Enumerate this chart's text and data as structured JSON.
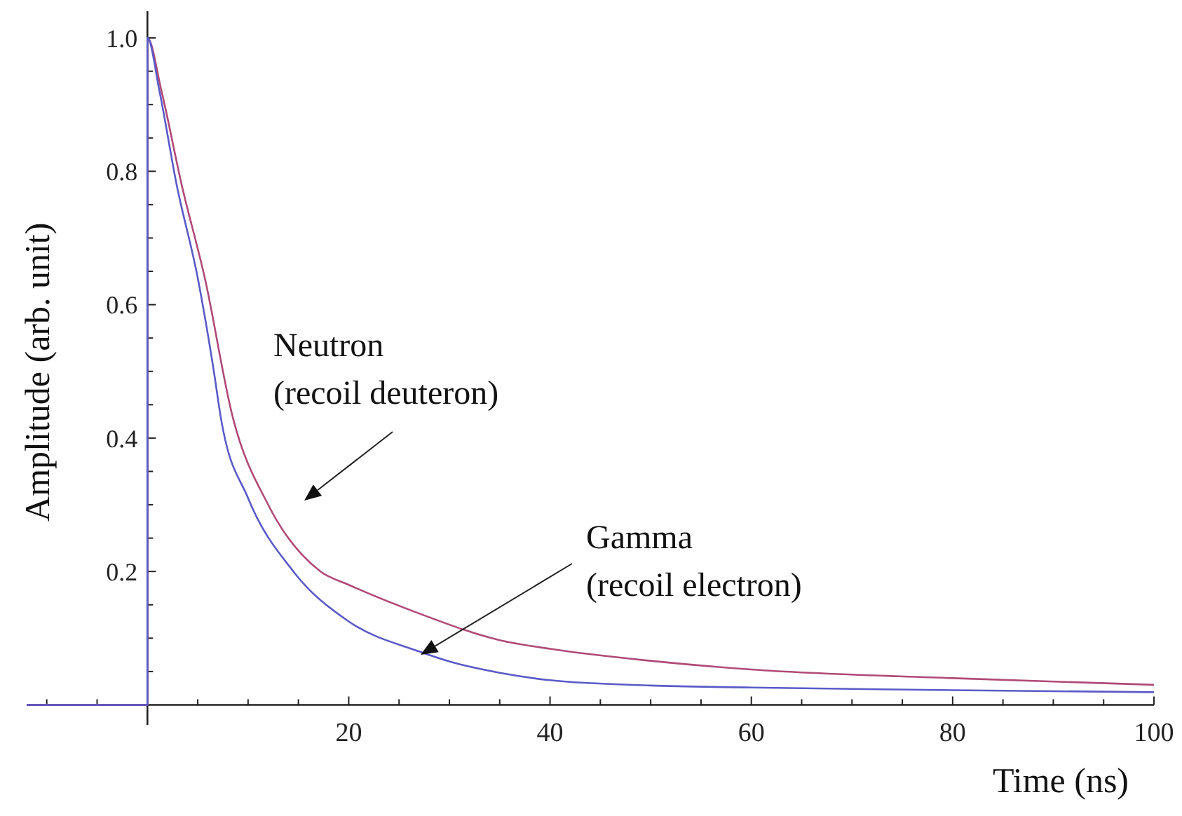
{
  "chart_data": {
    "type": "line",
    "xlabel": "Time (ns)",
    "ylabel": "Amplitude (arb. unit)",
    "xlim": [
      -12,
      100
    ],
    "ylim": [
      -0.03,
      1.04
    ],
    "xticks": [
      {
        "value": -10,
        "label": null
      },
      {
        "value": -5,
        "label": null
      },
      {
        "value": 5,
        "label": null
      },
      {
        "value": 10,
        "label": null
      },
      {
        "value": 15,
        "label": null
      },
      20,
      {
        "value": 25,
        "label": null
      },
      {
        "value": 30,
        "label": null
      },
      {
        "value": 35,
        "label": null
      },
      40,
      {
        "value": 45,
        "label": null
      },
      {
        "value": 50,
        "label": null
      },
      {
        "value": 55,
        "label": null
      },
      60,
      {
        "value": 65,
        "label": null
      },
      {
        "value": 70,
        "label": null
      },
      {
        "value": 75,
        "label": null
      },
      80,
      {
        "value": 85,
        "label": null
      },
      {
        "value": 90,
        "label": null
      },
      {
        "value": 95,
        "label": null
      },
      100
    ],
    "yticks": [
      {
        "value": 0.05,
        "label": null
      },
      {
        "value": 0.1,
        "label": null
      },
      {
        "value": 0.15,
        "label": null
      },
      0.2,
      {
        "value": 0.25,
        "label": null
      },
      {
        "value": 0.3,
        "label": null
      },
      {
        "value": 0.35,
        "label": null
      },
      0.4,
      {
        "value": 0.45,
        "label": null
      },
      {
        "value": 0.5,
        "label": null
      },
      {
        "value": 0.55,
        "label": null
      },
      0.6,
      {
        "value": 0.65,
        "label": null
      },
      {
        "value": 0.7,
        "label": null
      },
      {
        "value": 0.75,
        "label": null
      },
      0.8,
      {
        "value": 0.85,
        "label": null
      },
      {
        "value": 0.9,
        "label": null
      },
      {
        "value": 0.95,
        "label": null
      },
      {
        "value": 1,
        "label": "1.0"
      }
    ],
    "grid": false,
    "legend": false,
    "marker": "none",
    "line_style": "solid",
    "series": [
      {
        "color": "#b04a78",
        "x": [
          -12,
          0,
          0,
          1.4,
          3.4,
          5.7,
          8.5,
          12,
          17.2,
          20,
          27,
          35,
          40,
          50,
          60,
          80,
          100
        ],
        "values": [
          0,
          0,
          1,
          0.92,
          0.78,
          0.64,
          0.43,
          0.3,
          0.2,
          0.18,
          0.137,
          0.097,
          0.084,
          0.066,
          0.053,
          0.04,
          0.03
        ]
      },
      {
        "color": "#5a5ac8",
        "x": [
          -12,
          0,
          0,
          1.2,
          2.9,
          5,
          6.6,
          7.3,
          10,
          14.5,
          20,
          27,
          30,
          35,
          40,
          50,
          60,
          80,
          100
        ],
        "values": [
          0,
          0,
          1,
          0.92,
          0.78,
          0.64,
          0.5,
          0.43,
          0.31,
          0.2,
          0.125,
          0.08,
          0.065,
          0.048,
          0.037,
          0.029,
          0.026,
          0.022,
          0.019
        ]
      }
    ],
    "annotations": [
      "Neutron\n(recoil deuteron)",
      "Gamma\n(recoil electron)"
    ]
  }
}
